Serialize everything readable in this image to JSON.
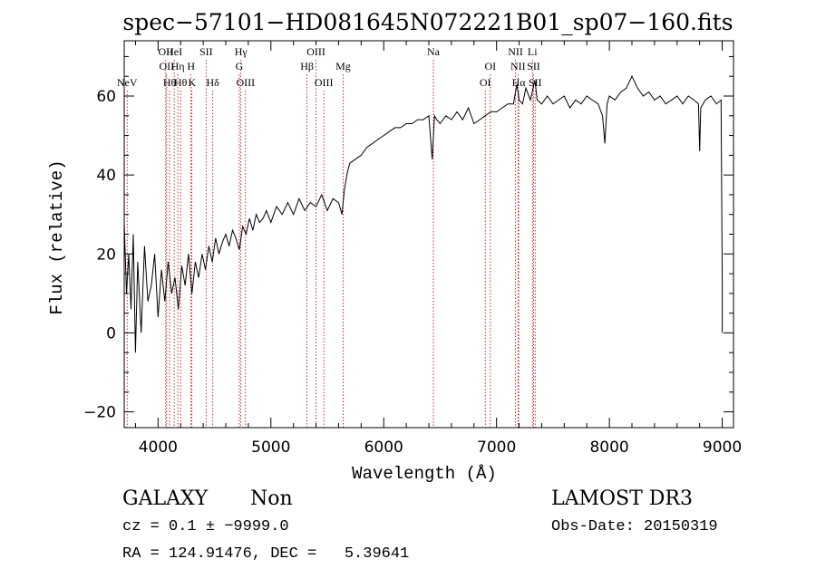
{
  "chart_data": {
    "type": "line",
    "title": "spec−57101−HD081645N072221B01_sp07−160.fits",
    "xlabel": "Wavelength (Å)",
    "ylabel": "Flux (relative)",
    "xlim": [
      3700,
      9100
    ],
    "ylim": [
      -24,
      74
    ],
    "xticks": [
      4000,
      5000,
      6000,
      7000,
      8000,
      9000
    ],
    "yticks": [
      -20,
      0,
      20,
      40,
      60
    ],
    "grid": false,
    "series": [
      {
        "name": "spectrum",
        "x": [
          3700,
          3720,
          3740,
          3760,
          3780,
          3800,
          3820,
          3850,
          3880,
          3910,
          3940,
          3970,
          4000,
          4030,
          4060,
          4090,
          4120,
          4150,
          4180,
          4210,
          4240,
          4270,
          4300,
          4330,
          4360,
          4390,
          4420,
          4450,
          4480,
          4510,
          4540,
          4570,
          4600,
          4630,
          4660,
          4690,
          4720,
          4750,
          4780,
          4810,
          4840,
          4870,
          4900,
          4930,
          4960,
          5000,
          5050,
          5100,
          5150,
          5200,
          5250,
          5300,
          5350,
          5400,
          5450,
          5500,
          5550,
          5600,
          5630,
          5650,
          5680,
          5700,
          5750,
          5800,
          5850,
          5900,
          5950,
          6000,
          6050,
          6100,
          6150,
          6200,
          6250,
          6300,
          6350,
          6400,
          6430,
          6450,
          6470,
          6500,
          6550,
          6600,
          6650,
          6700,
          6750,
          6800,
          6850,
          6900,
          6950,
          7000,
          7050,
          7100,
          7150,
          7180,
          7200,
          7230,
          7260,
          7300,
          7340,
          7360,
          7400,
          7450,
          7500,
          7550,
          7600,
          7650,
          7700,
          7750,
          7800,
          7850,
          7900,
          7940,
          7960,
          7980,
          8000,
          8050,
          8100,
          8150,
          8200,
          8250,
          8300,
          8350,
          8400,
          8450,
          8500,
          8550,
          8600,
          8650,
          8700,
          8750,
          8790,
          8800,
          8810,
          8850,
          8900,
          8950,
          8990,
          9000,
          9000
        ],
        "values": [
          28,
          10,
          20,
          6,
          25,
          -5,
          18,
          0,
          22,
          8,
          12,
          20,
          4,
          16,
          8,
          18,
          10,
          14,
          6,
          17,
          12,
          20,
          10,
          18,
          14,
          20,
          16,
          22,
          18,
          24,
          20,
          23,
          25,
          22,
          26,
          24,
          21,
          27,
          25,
          29,
          26,
          30,
          28,
          29,
          31,
          28,
          32,
          30,
          33,
          30,
          34,
          31,
          33,
          32,
          35,
          31,
          34,
          33,
          30,
          36,
          41,
          43,
          44,
          45,
          47,
          48,
          49,
          50,
          51,
          52,
          52,
          53,
          53,
          54,
          54,
          55,
          44,
          55,
          54,
          53,
          55,
          54,
          56,
          54,
          57,
          53,
          54,
          55,
          56,
          56,
          57,
          58,
          58,
          63,
          59,
          58,
          62,
          59,
          64,
          59,
          58,
          60,
          58,
          59,
          60,
          57,
          59,
          58,
          60,
          59,
          58,
          55,
          48,
          58,
          60,
          59,
          61,
          62,
          65,
          62,
          60,
          61,
          59,
          60,
          58,
          59,
          60,
          58,
          60,
          59,
          58,
          46,
          57,
          59,
          60,
          58,
          59,
          13,
          0
        ]
      }
    ],
    "lines": [
      {
        "label": "NeV",
        "x": 3726,
        "row": 3
      },
      {
        "label": "OII",
        "x": 4068,
        "row": 0
      },
      {
        "label": "OII",
        "x": 4076,
        "row": 1
      },
      {
        "label": "Hθ",
        "x": 4102,
        "row": 2
      },
      {
        "label": "HeI",
        "x": 4143,
        "row": 0
      },
      {
        "label": "Hη",
        "x": 4175,
        "row": 1
      },
      {
        "label": "Hθ",
        "x": 4200,
        "row": 2
      },
      {
        "label": "H",
        "x": 4292,
        "row": 1
      },
      {
        "label": "K",
        "x": 4300,
        "row": 2
      },
      {
        "label": "SII",
        "x": 4426,
        "row": 0
      },
      {
        "label": "Hδ",
        "x": 4485,
        "row": 2
      },
      {
        "label": "Hγ",
        "x": 4734,
        "row": 0
      },
      {
        "label": "G",
        "x": 4720,
        "row": 1
      },
      {
        "label": "OIII",
        "x": 4775,
        "row": 2
      },
      {
        "label": "Hβ",
        "x": 5320,
        "row": 1
      },
      {
        "label": "OIII",
        "x": 5400,
        "row": 0
      },
      {
        "label": "OIII",
        "x": 5469,
        "row": 2
      },
      {
        "label": "Mg",
        "x": 5640,
        "row": 1
      },
      {
        "label": "Na",
        "x": 6440,
        "row": 0
      },
      {
        "label": "OI",
        "x": 6945,
        "row": 1
      },
      {
        "label": "OI",
        "x": 6900,
        "row": 2
      },
      {
        "label": "NII",
        "x": 7168,
        "row": 0
      },
      {
        "label": "NII",
        "x": 7190,
        "row": 1
      },
      {
        "label": "Hα",
        "x": 7196,
        "row": 2
      },
      {
        "label": "Li",
        "x": 7318,
        "row": 0
      },
      {
        "label": "SII",
        "x": 7328,
        "row": 1
      },
      {
        "label": "SII",
        "x": 7342,
        "row": 2
      }
    ]
  },
  "info": {
    "object_class": "GALAXY",
    "subclass": "Non",
    "survey": "LAMOST DR3",
    "redshift": "cz = 0.1 ± −9999.0",
    "obs_date": "Obs-Date: 20150319",
    "coords": "RA = 124.91476, DEC =   5.39641"
  }
}
